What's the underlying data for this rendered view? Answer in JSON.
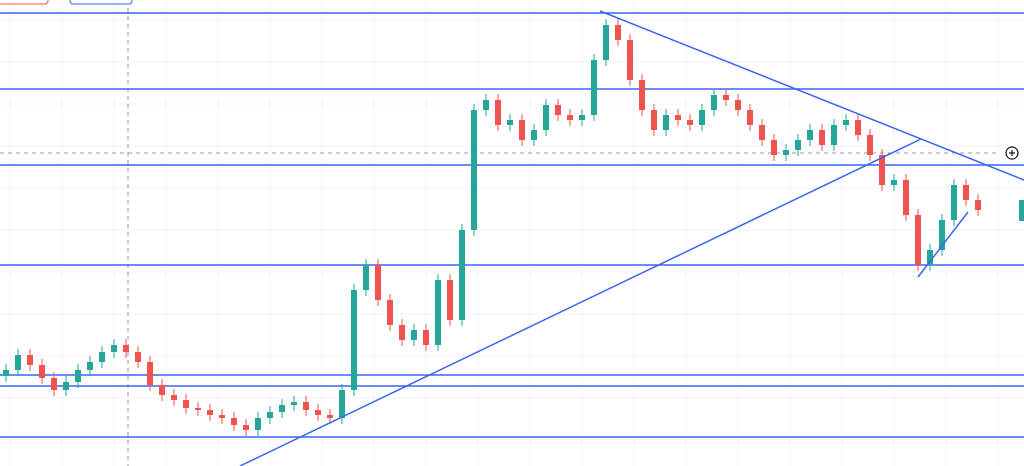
{
  "chart_data": {
    "type": "candlestick",
    "ylim": [
      0,
      466
    ],
    "up_color": "#26a69a",
    "down_color": "#ef5350",
    "level_color": "#3a66f0",
    "open": [
      90,
      96,
      111,
      101,
      88,
      76,
      84,
      96,
      104,
      114,
      121,
      114,
      104,
      81,
      71,
      66,
      58,
      56,
      51,
      48,
      41,
      36,
      48,
      54,
      61,
      64,
      56,
      51,
      48,
      76,
      176,
      201,
      166,
      141,
      126,
      136,
      121,
      186,
      146,
      236,
      356,
      366,
      341,
      346,
      326,
      336,
      361,
      351,
      346,
      351,
      406,
      441,
      426,
      386,
      356,
      336,
      351,
      346,
      341,
      356,
      371,
      366,
      356,
      341,
      326,
      311,
      316,
      326,
      336,
      321,
      341,
      346,
      331,
      311,
      281,
      286,
      251,
      201,
      216,
      246,
      281,
      266
    ],
    "high": [
      102,
      117,
      117,
      107,
      94,
      90,
      102,
      110,
      120,
      127,
      127,
      120,
      110,
      87,
      77,
      72,
      64,
      62,
      57,
      54,
      47,
      54,
      60,
      67,
      70,
      70,
      62,
      57,
      82,
      182,
      207,
      207,
      172,
      147,
      142,
      142,
      192,
      192,
      242,
      362,
      372,
      372,
      352,
      352,
      342,
      367,
      367,
      357,
      357,
      412,
      447,
      447,
      432,
      392,
      362,
      357,
      357,
      352,
      362,
      377,
      377,
      372,
      362,
      347,
      332,
      322,
      332,
      342,
      342,
      347,
      352,
      352,
      337,
      317,
      292,
      292,
      257,
      222,
      252,
      287,
      287,
      272
    ],
    "low": [
      84,
      90,
      95,
      82,
      70,
      70,
      78,
      90,
      98,
      108,
      108,
      98,
      75,
      65,
      60,
      52,
      50,
      45,
      42,
      35,
      30,
      30,
      42,
      48,
      55,
      50,
      45,
      42,
      42,
      70,
      170,
      160,
      135,
      120,
      120,
      115,
      115,
      140,
      140,
      230,
      350,
      335,
      335,
      320,
      320,
      330,
      345,
      340,
      340,
      345,
      400,
      420,
      380,
      350,
      330,
      330,
      340,
      335,
      335,
      350,
      360,
      350,
      335,
      320,
      305,
      305,
      310,
      320,
      315,
      315,
      335,
      325,
      305,
      275,
      275,
      245,
      195,
      195,
      210,
      240,
      260,
      250
    ],
    "close": [
      96,
      111,
      101,
      88,
      76,
      84,
      96,
      104,
      114,
      121,
      114,
      104,
      81,
      71,
      66,
      58,
      56,
      51,
      48,
      41,
      36,
      48,
      54,
      61,
      64,
      56,
      51,
      48,
      76,
      176,
      201,
      166,
      141,
      126,
      136,
      121,
      186,
      146,
      236,
      356,
      366,
      341,
      346,
      326,
      336,
      361,
      351,
      346,
      351,
      406,
      441,
      426,
      386,
      356,
      336,
      351,
      346,
      341,
      356,
      371,
      366,
      356,
      341,
      326,
      311,
      316,
      326,
      336,
      321,
      341,
      346,
      331,
      311,
      281,
      286,
      251,
      201,
      216,
      246,
      281,
      266,
      256
    ],
    "levels": [
      453,
      377,
      301,
      201,
      91,
      80,
      29
    ]
  }
}
